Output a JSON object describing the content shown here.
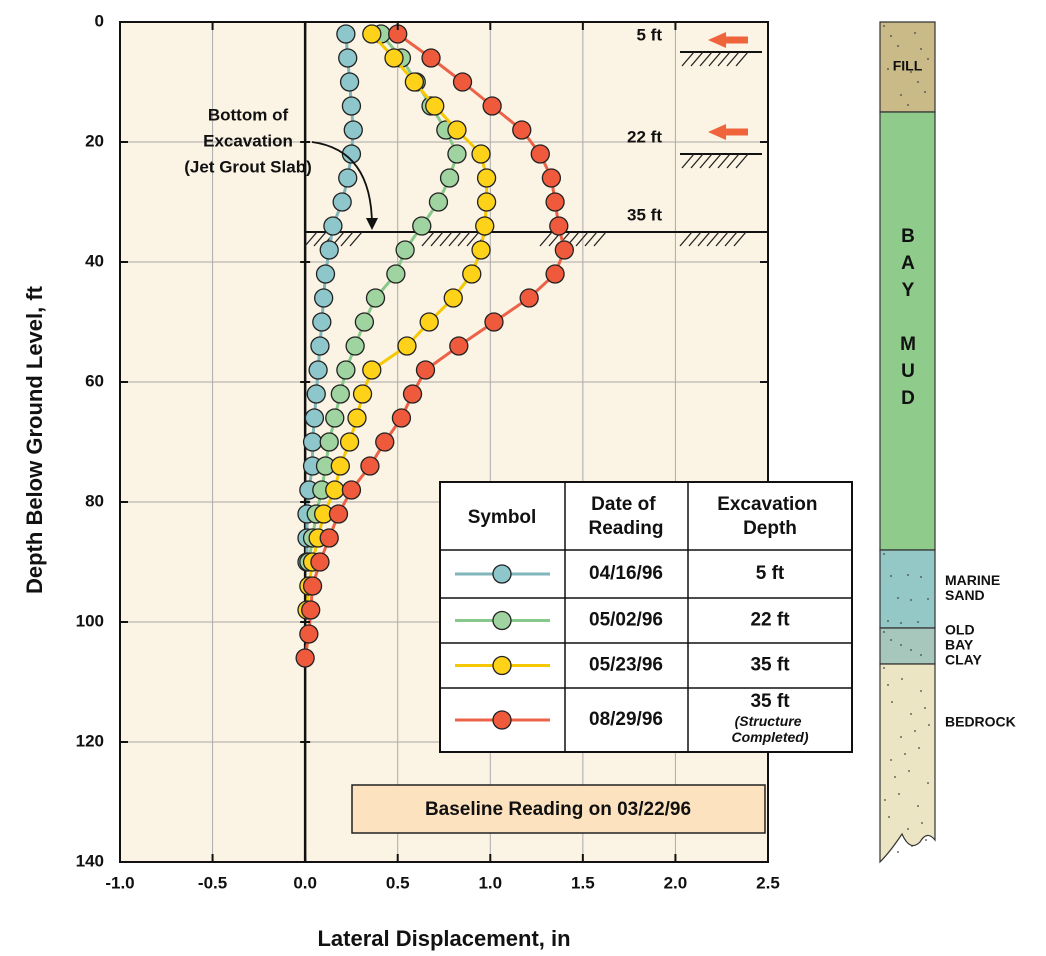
{
  "chart_data": {
    "type": "profile",
    "xlabel": "Lateral Displacement, in",
    "ylabel": "Depth Below Ground Level, ft",
    "xlim": [
      -1.0,
      2.5
    ],
    "xticks": [
      {
        "value": -1.0,
        "label": "-1.0"
      },
      {
        "value": -0.5,
        "label": "-0.5"
      },
      {
        "value": 0.0,
        "label": "0.0"
      },
      {
        "value": 0.5,
        "label": "0.5"
      },
      {
        "value": 1.0,
        "label": "1.0"
      },
      {
        "value": 1.5,
        "label": "1.5"
      },
      {
        "value": 2.0,
        "label": "2.0"
      },
      {
        "value": 2.5,
        "label": "2.5"
      }
    ],
    "ylim": [
      0,
      140
    ],
    "yticks": [
      0,
      20,
      40,
      60,
      80,
      100,
      120,
      140
    ],
    "y_inverted": true,
    "grid": true,
    "series": [
      {
        "name": "04/16/96",
        "excavation_depth": "5 ft",
        "color": "#7fb5bb",
        "marker_color": "#8ec7cb",
        "depth": [
          2,
          6,
          10,
          14,
          18,
          22,
          26,
          30,
          34,
          38,
          42,
          46,
          50,
          54,
          58,
          62,
          66,
          70,
          74,
          78,
          82,
          86,
          90
        ],
        "values": [
          0.22,
          0.23,
          0.24,
          0.25,
          0.26,
          0.25,
          0.23,
          0.2,
          0.15,
          0.13,
          0.11,
          0.1,
          0.09,
          0.08,
          0.07,
          0.06,
          0.05,
          0.04,
          0.04,
          0.02,
          0.01,
          0.01,
          0.01
        ]
      },
      {
        "name": "05/02/96",
        "excavation_depth": "22 ft",
        "color": "#86c98a",
        "marker_color": "#9fd39f",
        "depth": [
          2,
          6,
          10,
          14,
          18,
          22,
          26,
          30,
          34,
          38,
          42,
          46,
          50,
          54,
          58,
          62,
          66,
          70,
          74,
          78,
          82,
          86,
          90
        ],
        "values": [
          0.41,
          0.52,
          0.6,
          0.68,
          0.76,
          0.82,
          0.78,
          0.72,
          0.63,
          0.54,
          0.49,
          0.38,
          0.32,
          0.27,
          0.22,
          0.19,
          0.16,
          0.13,
          0.11,
          0.09,
          0.06,
          0.04,
          0.02
        ]
      },
      {
        "name": "05/23/96",
        "excavation_depth": "35 ft",
        "color": "#f5c800",
        "marker_color": "#ffd21a",
        "depth": [
          2,
          6,
          10,
          14,
          18,
          22,
          26,
          30,
          34,
          38,
          42,
          46,
          50,
          54,
          58,
          62,
          66,
          70,
          74,
          78,
          82,
          86,
          90,
          94,
          98
        ],
        "values": [
          0.36,
          0.48,
          0.59,
          0.7,
          0.82,
          0.95,
          0.98,
          0.98,
          0.97,
          0.95,
          0.9,
          0.8,
          0.67,
          0.55,
          0.36,
          0.31,
          0.28,
          0.24,
          0.19,
          0.16,
          0.1,
          0.07,
          0.04,
          0.02,
          0.01
        ]
      },
      {
        "name": "08/29/96",
        "excavation_depth": "35 ft",
        "note": "(Structure Completed)",
        "color": "#ec6248",
        "marker_color": "#f05a3c",
        "depth": [
          2,
          6,
          10,
          14,
          18,
          22,
          26,
          30,
          34,
          38,
          42,
          46,
          50,
          54,
          58,
          62,
          66,
          70,
          74,
          78,
          82,
          86,
          90,
          94,
          98,
          102,
          106
        ],
        "values": [
          0.5,
          0.68,
          0.85,
          1.01,
          1.17,
          1.27,
          1.33,
          1.35,
          1.37,
          1.4,
          1.35,
          1.21,
          1.02,
          0.83,
          0.65,
          0.58,
          0.52,
          0.43,
          0.35,
          0.25,
          0.18,
          0.13,
          0.08,
          0.04,
          0.03,
          0.02,
          0.0
        ]
      }
    ],
    "legend_headers": [
      "Symbol",
      "Date of Reading",
      "Excavation Depth"
    ],
    "excavation_stages": [
      {
        "value": 5,
        "label": "5 ft"
      },
      {
        "value": 22,
        "label": "22 ft"
      },
      {
        "value": 35,
        "label": "35 ft"
      }
    ],
    "annotation": [
      "Bottom of",
      "Excavation",
      "(Jet Grout Slab)"
    ],
    "baseline_note": "Baseline Reading on 03/22/96",
    "soil_layers": [
      {
        "label": [
          "FILL"
        ],
        "top": 0,
        "bottom": 15,
        "color": "#c9ba88",
        "label_position": "inside"
      },
      {
        "label": [
          "BAY MUD"
        ],
        "top": 15,
        "bottom": 88,
        "color": "#8fcc8c",
        "label_position": "vertical"
      },
      {
        "label": [
          "MARINE",
          "SAND"
        ],
        "top": 88,
        "bottom": 101,
        "color": "#93c8c6",
        "label_position": "outside"
      },
      {
        "label": [
          "OLD",
          "BAY",
          "CLAY"
        ],
        "top": 101,
        "bottom": 107,
        "color": "#a7c7bd",
        "label_position": "outside"
      },
      {
        "label": [
          "BEDROCK"
        ],
        "top": 107,
        "bottom": 140,
        "color": "#ece5c3",
        "label_position": "outside"
      }
    ]
  }
}
